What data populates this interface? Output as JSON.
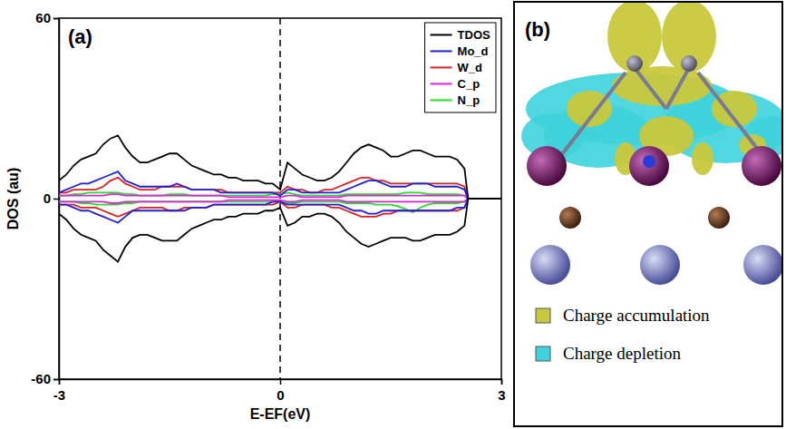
{
  "chart_data": {
    "type": "line",
    "title": "(a)",
    "x_label": "E-EF(eV)",
    "y_label": "DOS (au)",
    "xlim": [
      -3,
      3
    ],
    "xticks": [
      -3,
      0,
      3
    ],
    "ylim": [
      -60,
      60
    ],
    "yticks": [
      -60,
      0,
      60
    ],
    "legend": "upper right",
    "annotations": [
      {
        "x": 0,
        "line_style": "dashed"
      }
    ],
    "x": [
      -3.0,
      -2.9,
      -2.8,
      -2.7,
      -2.6,
      -2.5,
      -2.4,
      -2.3,
      -2.2,
      -2.1,
      -2.0,
      -1.9,
      -1.8,
      -1.7,
      -1.6,
      -1.5,
      -1.4,
      -1.3,
      -1.2,
      -1.1,
      -1.0,
      -0.9,
      -0.8,
      -0.7,
      -0.6,
      -0.5,
      -0.4,
      -0.3,
      -0.2,
      -0.1,
      0.0,
      0.1,
      0.2,
      0.3,
      0.4,
      0.5,
      0.6,
      0.7,
      0.8,
      0.9,
      1.0,
      1.1,
      1.2,
      1.3,
      1.4,
      1.5,
      1.6,
      1.7,
      1.8,
      1.9,
      2.0,
      2.1,
      2.2,
      2.3,
      2.4,
      2.5,
      2.55,
      3.0
    ],
    "series": [
      {
        "name": "TDOS",
        "color": "#000000",
        "values": [
          6,
          8,
          11,
          13,
          14,
          15,
          18,
          20,
          21,
          17,
          14,
          12,
          12,
          13,
          14,
          15,
          15,
          13,
          11,
          10,
          9,
          8,
          8,
          7,
          7,
          6,
          6,
          6,
          5,
          5,
          3,
          12,
          10,
          8,
          7,
          6,
          6,
          7,
          9,
          12,
          15,
          17,
          18,
          17,
          16,
          14,
          14,
          15,
          16,
          16,
          15,
          14,
          14,
          14,
          13,
          10,
          0,
          0
        ],
        "values_down": [
          -5,
          -7,
          -10,
          -12,
          -13,
          -14,
          -17,
          -19,
          -21,
          -16,
          -13,
          -12,
          -12,
          -13,
          -14,
          -14,
          -14,
          -12,
          -10,
          -9,
          -8,
          -7,
          -7,
          -6,
          -6,
          -5,
          -5,
          -5,
          -4,
          -4,
          -3,
          -9,
          -8,
          -6,
          -6,
          -5,
          -5,
          -6,
          -8,
          -11,
          -13,
          -15,
          -16,
          -15,
          -14,
          -13,
          -13,
          -13,
          -14,
          -14,
          -13,
          -12,
          -12,
          -12,
          -11,
          -9,
          0,
          0
        ]
      },
      {
        "name": "Mo_d",
        "color": "#1f1fe0",
        "values": [
          2,
          3,
          4,
          5,
          5,
          6,
          7,
          8,
          9,
          6,
          5,
          4,
          4,
          4,
          4,
          4,
          5,
          4,
          3,
          3,
          3,
          3,
          2,
          2,
          2,
          2,
          2,
          2,
          2,
          2,
          1,
          3,
          3,
          2,
          2,
          2,
          2,
          2,
          2,
          3,
          4,
          5,
          6,
          6,
          5,
          4,
          4,
          4,
          5,
          5,
          5,
          4,
          4,
          4,
          4,
          3,
          0,
          0
        ],
        "values_down": [
          -2,
          -2,
          -3,
          -4,
          -4,
          -5,
          -6,
          -7,
          -8,
          -6,
          -4,
          -4,
          -4,
          -4,
          -4,
          -4,
          -4,
          -4,
          -3,
          -3,
          -3,
          -2,
          -2,
          -2,
          -2,
          -2,
          -2,
          -2,
          -2,
          -1,
          -1,
          -2,
          -2,
          -2,
          -2,
          -2,
          -2,
          -2,
          -2,
          -3,
          -4,
          -4,
          -5,
          -5,
          -4,
          -4,
          -4,
          -4,
          -4,
          -4,
          -4,
          -4,
          -4,
          -4,
          -3,
          -3,
          0,
          0
        ]
      },
      {
        "name": "W_d",
        "color": "#e01f1f",
        "values": [
          2,
          2,
          3,
          3,
          3,
          3,
          4,
          6,
          7,
          5,
          4,
          3,
          3,
          3,
          4,
          4,
          4,
          4,
          3,
          3,
          3,
          3,
          3,
          2,
          2,
          2,
          2,
          2,
          2,
          2,
          2,
          4,
          3,
          3,
          2,
          2,
          3,
          3,
          4,
          5,
          6,
          7,
          7,
          6,
          6,
          5,
          5,
          5,
          5,
          5,
          5,
          5,
          5,
          5,
          5,
          4,
          0,
          0
        ],
        "values_down": [
          -2,
          -2,
          -2,
          -3,
          -3,
          -3,
          -4,
          -5,
          -6,
          -5,
          -4,
          -3,
          -3,
          -3,
          -3,
          -4,
          -4,
          -3,
          -3,
          -3,
          -3,
          -2,
          -2,
          -2,
          -2,
          -2,
          -2,
          -2,
          -2,
          -2,
          -1,
          -3,
          -3,
          -2,
          -2,
          -2,
          -2,
          -3,
          -3,
          -4,
          -5,
          -6,
          -6,
          -6,
          -5,
          -5,
          -4,
          -4,
          -4,
          -4,
          -4,
          -4,
          -4,
          -4,
          -4,
          -3,
          0,
          0
        ]
      },
      {
        "name": "C_p",
        "color": "#e020e0",
        "values": [
          1,
          1,
          1,
          1,
          1,
          1,
          1,
          1.5,
          1.5,
          1,
          1,
          1,
          1,
          1,
          1,
          1,
          1,
          1,
          1,
          1,
          1,
          1,
          1,
          0.5,
          0.5,
          0.5,
          0.5,
          0.5,
          0.5,
          0.5,
          0.5,
          1,
          1,
          0.5,
          0.5,
          0.5,
          0.5,
          0.5,
          0.5,
          1,
          1,
          1,
          1,
          1,
          1,
          1,
          1,
          1,
          1,
          1,
          1,
          1,
          1,
          1,
          1,
          1,
          0,
          0
        ],
        "values_down": [
          -1,
          -1,
          -1,
          -1,
          -1,
          -1,
          -1,
          -1.5,
          -1.5,
          -1,
          -1,
          -1,
          -1,
          -1,
          -1,
          -1,
          -1,
          -1,
          -1,
          -1,
          -1,
          -1,
          -1,
          -0.5,
          -0.5,
          -0.5,
          -0.5,
          -0.5,
          -0.5,
          -0.5,
          -0.5,
          -1,
          -1,
          -0.5,
          -0.5,
          -0.5,
          -0.5,
          -0.5,
          -0.5,
          -1,
          -1,
          -1,
          -1,
          -1,
          -1,
          -1,
          -1,
          -1,
          -1,
          -1,
          -1,
          -1,
          -1,
          -1,
          -1,
          -1,
          0,
          0
        ]
      },
      {
        "name": "N_p",
        "color": "#20e020",
        "values": [
          1,
          1,
          1.5,
          1.5,
          2,
          2,
          2,
          2,
          2,
          1.5,
          1.5,
          1,
          1,
          1,
          1,
          1.5,
          1.5,
          1.5,
          1,
          1,
          1,
          1,
          1,
          1,
          1,
          1,
          1,
          1,
          1,
          1.5,
          1.5,
          2,
          1.5,
          1,
          1,
          1,
          1,
          1,
          1,
          1.5,
          1.5,
          1.5,
          1.5,
          1.5,
          1.5,
          1.5,
          1.5,
          2,
          2,
          2,
          1.5,
          1.5,
          1.5,
          1.5,
          1.5,
          1,
          0,
          0
        ],
        "values_down": [
          -1,
          -1,
          -1,
          -1.5,
          -1.5,
          -2,
          -2,
          -2,
          -2,
          -1.5,
          -1.5,
          -1,
          -1,
          -1,
          -1,
          -1,
          -1,
          -1,
          -1,
          -1,
          -1,
          -1,
          -1,
          -1,
          -1,
          -1,
          -1,
          -1,
          -1,
          -1,
          -1,
          -1.5,
          -1.5,
          -1,
          -1,
          -1,
          -1,
          -1,
          -1,
          -1.5,
          -1.5,
          -1.5,
          -1.5,
          -2,
          -2,
          -2,
          -2.5,
          -3.5,
          -4.5,
          -3,
          -2,
          -1.5,
          -1.5,
          -1.5,
          -1.5,
          -1,
          0,
          0
        ]
      }
    ]
  },
  "panel_b": {
    "label": "(b)",
    "legend": [
      {
        "label": "Charge accumulation",
        "color": "#c9c83c"
      },
      {
        "label": "Charge depletion",
        "color": "#3ed3dc"
      }
    ]
  }
}
